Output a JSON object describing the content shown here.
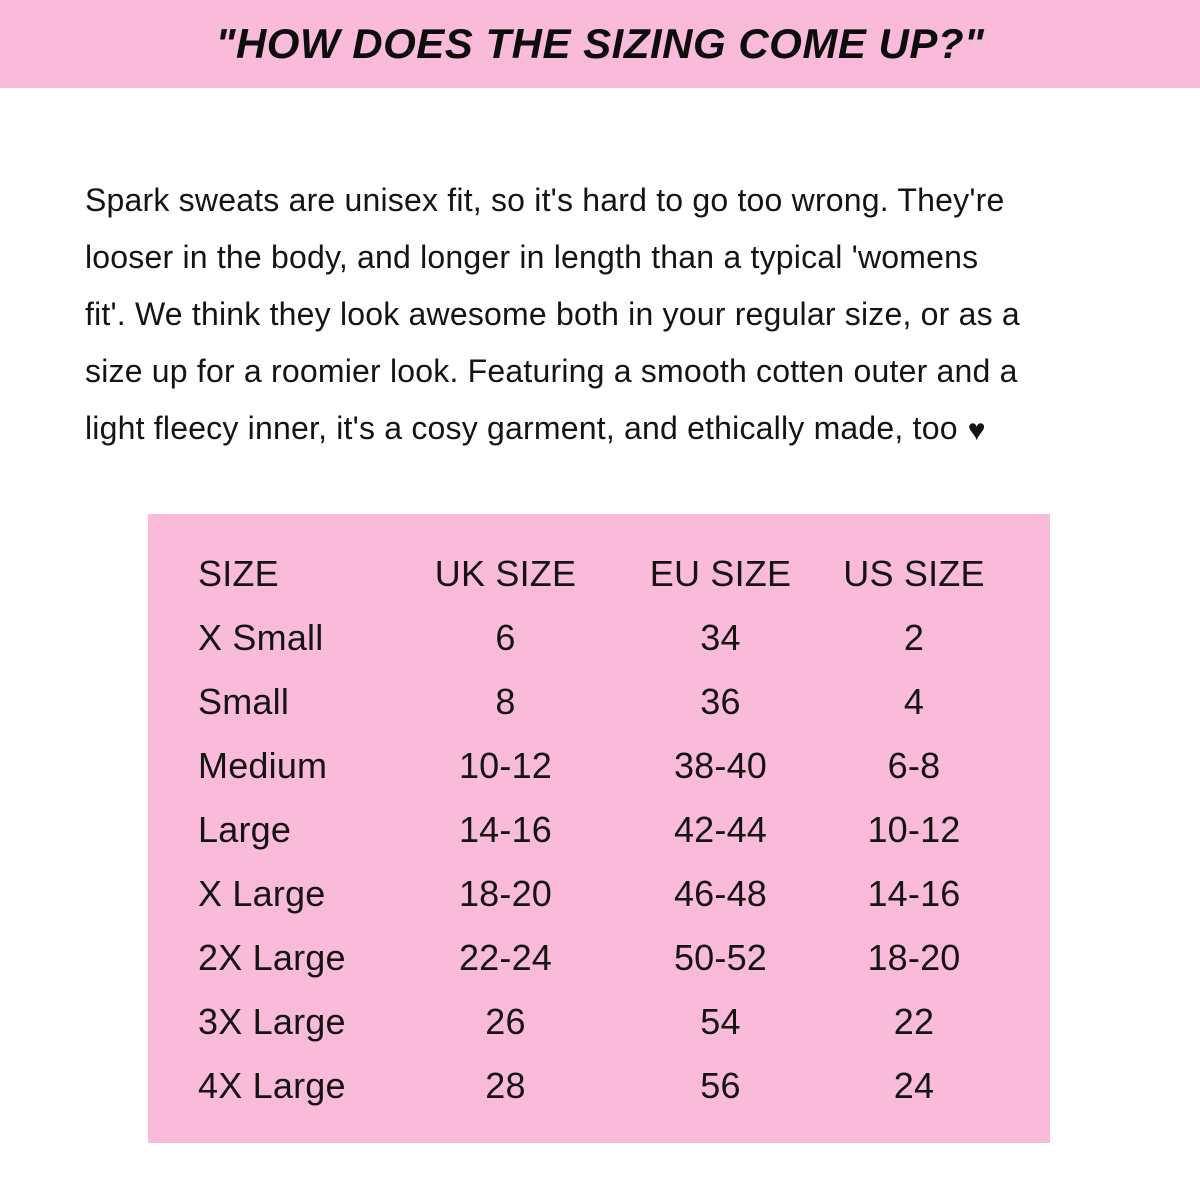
{
  "header": {
    "title": "\"HOW DOES THE SIZING COME UP?\""
  },
  "colors": {
    "banner_pink": "#FABBDB",
    "table_pink": "#FABBDB",
    "text": "#141414"
  },
  "intro": {
    "lines": [
      "Spark sweats are unisex fit, so it's hard to go too wrong. They're",
      "looser in the body, and longer in length than a typical 'womens",
      "fit'. We think they look awesome both in your regular size, or as a",
      "size up for a roomier look. Featuring a smooth cotten outer and a",
      "light fleecy inner, it's a cosy garment, and ethically made, too"
    ],
    "heart_icon": "♥"
  },
  "size_table": {
    "columns": [
      "SIZE",
      "UK SIZE",
      "EU SIZE",
      "US SIZE"
    ],
    "rows": [
      {
        "size": "X Small",
        "uk": "6",
        "eu": "34",
        "us": "2"
      },
      {
        "size": "Small",
        "uk": "8",
        "eu": "36",
        "us": "4"
      },
      {
        "size": "Medium",
        "uk": "10-12",
        "eu": "38-40",
        "us": "6-8"
      },
      {
        "size": "Large",
        "uk": "14-16",
        "eu": "42-44",
        "us": "10-12"
      },
      {
        "size": "X Large",
        "uk": "18-20",
        "eu": "46-48",
        "us": "14-16"
      },
      {
        "size": "2X Large",
        "uk": "22-24",
        "eu": "50-52",
        "us": "18-20"
      },
      {
        "size": "3X Large",
        "uk": "26",
        "eu": "54",
        "us": "22"
      },
      {
        "size": "4X Large",
        "uk": "28",
        "eu": "56",
        "us": "24"
      }
    ]
  }
}
